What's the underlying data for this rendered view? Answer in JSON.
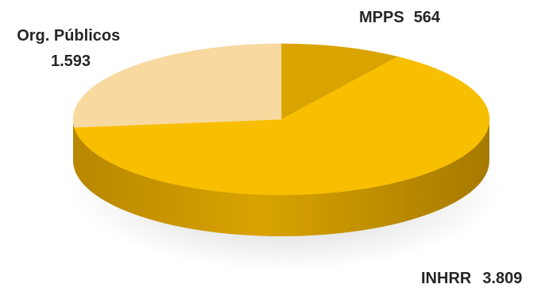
{
  "chart_data": {
    "type": "pie",
    "style": "3d",
    "title": "",
    "series": [
      {
        "categories": [
          "MPPS",
          "INHRR",
          "Org. Públicos"
        ],
        "values": [
          564,
          3809,
          1593
        ],
        "labels": [
          {
            "name": "MPPS",
            "value_text": "564"
          },
          {
            "name": "INHRR",
            "value_text": "3.809"
          },
          {
            "name": "Org. Públicos",
            "value_text": "1.593"
          }
        ],
        "colors": [
          "#D9A400",
          "#F8BE00",
          "#F8D9A0"
        ]
      }
    ],
    "legend": "none"
  }
}
